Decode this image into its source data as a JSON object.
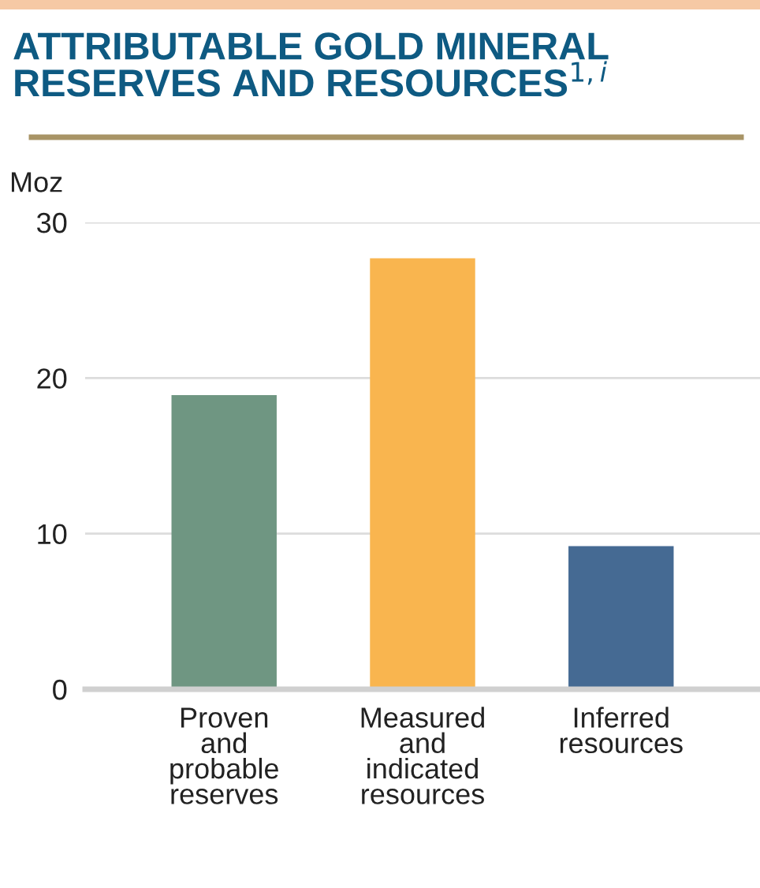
{
  "chart_data": {
    "type": "bar",
    "title": "ATTRIBUTABLE GOLD MINERAL RESERVES AND RESOURCES$^{1,i}$",
    "ylabel": "Moz",
    "categories": [
      "Proven\nand\nprobable\nreserves",
      "Measured\nand\nindicated\nresources",
      "Inferred\nresources"
    ],
    "values": [
      18.9,
      27.7,
      9.2
    ],
    "colors": [
      "#6f9682",
      "#f9b54f",
      "#456a93"
    ],
    "ylim": [
      0,
      30
    ],
    "yticks": [
      0,
      10,
      20,
      30
    ],
    "grid": "y"
  }
}
